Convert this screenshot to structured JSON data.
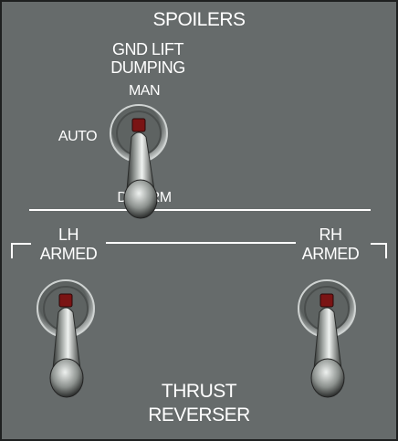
{
  "panel": {
    "title": "SPOILERS",
    "gnd_lift": {
      "title_line1": "GND LIFT",
      "title_line2": "DUMPING",
      "pos_up": "MAN",
      "pos_left": "AUTO",
      "pos_down": "DISARM",
      "state": "DISARM"
    },
    "lh_switch": {
      "label_line1": "LH",
      "label_line2": "ARMED",
      "state": "down"
    },
    "rh_switch": {
      "label_line1": "RH",
      "label_line2": "ARMED",
      "state": "down"
    },
    "bottom_title_line1": "THRUST",
    "bottom_title_line2": "REVERSER"
  }
}
